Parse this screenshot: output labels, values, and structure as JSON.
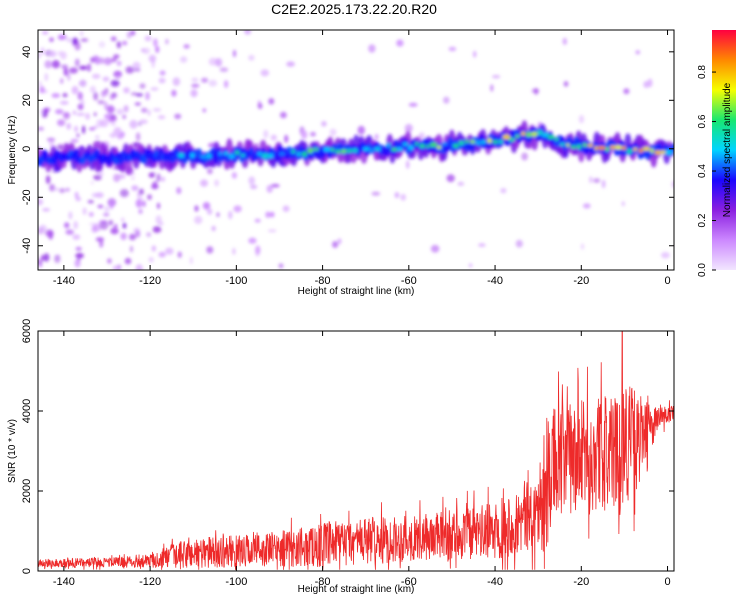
{
  "title": "C2E2.2025.173.22.20.R20",
  "colors": {
    "snr_line": "#ee2a2a",
    "colormap": [
      "#f2e6ff",
      "#cc88ff",
      "#8a1fe0",
      "#1b06ff",
      "#00d4ff",
      "#18e870",
      "#f6ff00",
      "#ff8800",
      "#ff0040"
    ]
  },
  "chart_data": [
    {
      "type": "heatmap",
      "xlabel": "Height of straight line (km)",
      "ylabel": "Frequency (Hz)",
      "xlim": [
        -146,
        1.5
      ],
      "ylim": [
        -50,
        49
      ],
      "x_ticks": [
        -140,
        -120,
        -100,
        -80,
        -60,
        -40,
        -20,
        0
      ],
      "y_ticks": [
        -40,
        -20,
        0,
        20,
        40
      ],
      "colorbar": {
        "label": "Normalized spectral amplitude",
        "range": [
          0,
          0.97
        ],
        "ticks": [
          0.0,
          0.2,
          0.4,
          0.6,
          0.8
        ],
        "tick_labels": [
          "0.0",
          "0.2",
          "0.4",
          "0.6",
          "0.8"
        ],
        "colormap": "rainbow"
      },
      "ridge": {
        "description_points_x": [
          -146,
          -140,
          -130,
          -120,
          -110,
          -100,
          -90,
          -80,
          -70,
          -60,
          -50,
          -40,
          -35,
          -30,
          -25,
          -20,
          -15,
          -10,
          -5,
          0
        ],
        "center_frequency": [
          -4,
          -3.5,
          -3.5,
          -3,
          -3,
          -2.5,
          -2,
          -1,
          0,
          1,
          1.5,
          3,
          5,
          6,
          3,
          1,
          1,
          0,
          -1,
          -1
        ],
        "peak_amplitude": [
          0.3,
          0.33,
          0.38,
          0.45,
          0.55,
          0.6,
          0.65,
          0.68,
          0.7,
          0.7,
          0.75,
          0.85,
          0.9,
          0.85,
          0.88,
          0.92,
          0.9,
          0.92,
          0.88,
          0.8
        ]
      }
    },
    {
      "type": "line",
      "xlabel": "Height of straight line (km)",
      "ylabel": "SNR (10 * v/v)",
      "xlim": [
        -146,
        1.5
      ],
      "ylim": [
        0,
        6000
      ],
      "x_ticks": [
        -140,
        -120,
        -100,
        -80,
        -60,
        -40,
        -20,
        0
      ],
      "y_ticks": [
        0,
        2000,
        4000,
        6000
      ],
      "series": [
        {
          "x": [
            -146,
            -140,
            -130,
            -120,
            -115,
            -110,
            -100,
            -90,
            -80,
            -70,
            -60,
            -50,
            -40,
            -35,
            -30,
            -28,
            -27,
            -25,
            -20,
            -15,
            -12,
            -10,
            -8,
            -5,
            -2,
            0,
            1.5
          ],
          "baseline": [
            200,
            200,
            220,
            250,
            350,
            450,
            500,
            550,
            650,
            750,
            800,
            900,
            1000,
            1200,
            1500,
            1800,
            2600,
            2800,
            2800,
            3000,
            3000,
            3300,
            3200,
            3500,
            3800,
            3900,
            3900
          ],
          "spread": [
            120,
            140,
            150,
            200,
            400,
            500,
            500,
            550,
            700,
            750,
            700,
            800,
            900,
            1000,
            1200,
            1600,
            1900,
            1800,
            1800,
            1800,
            1700,
            2000,
            1800,
            900,
            400,
            350,
            300
          ],
          "peak": {
            "x": -10.5,
            "y": 6000
          }
        }
      ]
    }
  ]
}
